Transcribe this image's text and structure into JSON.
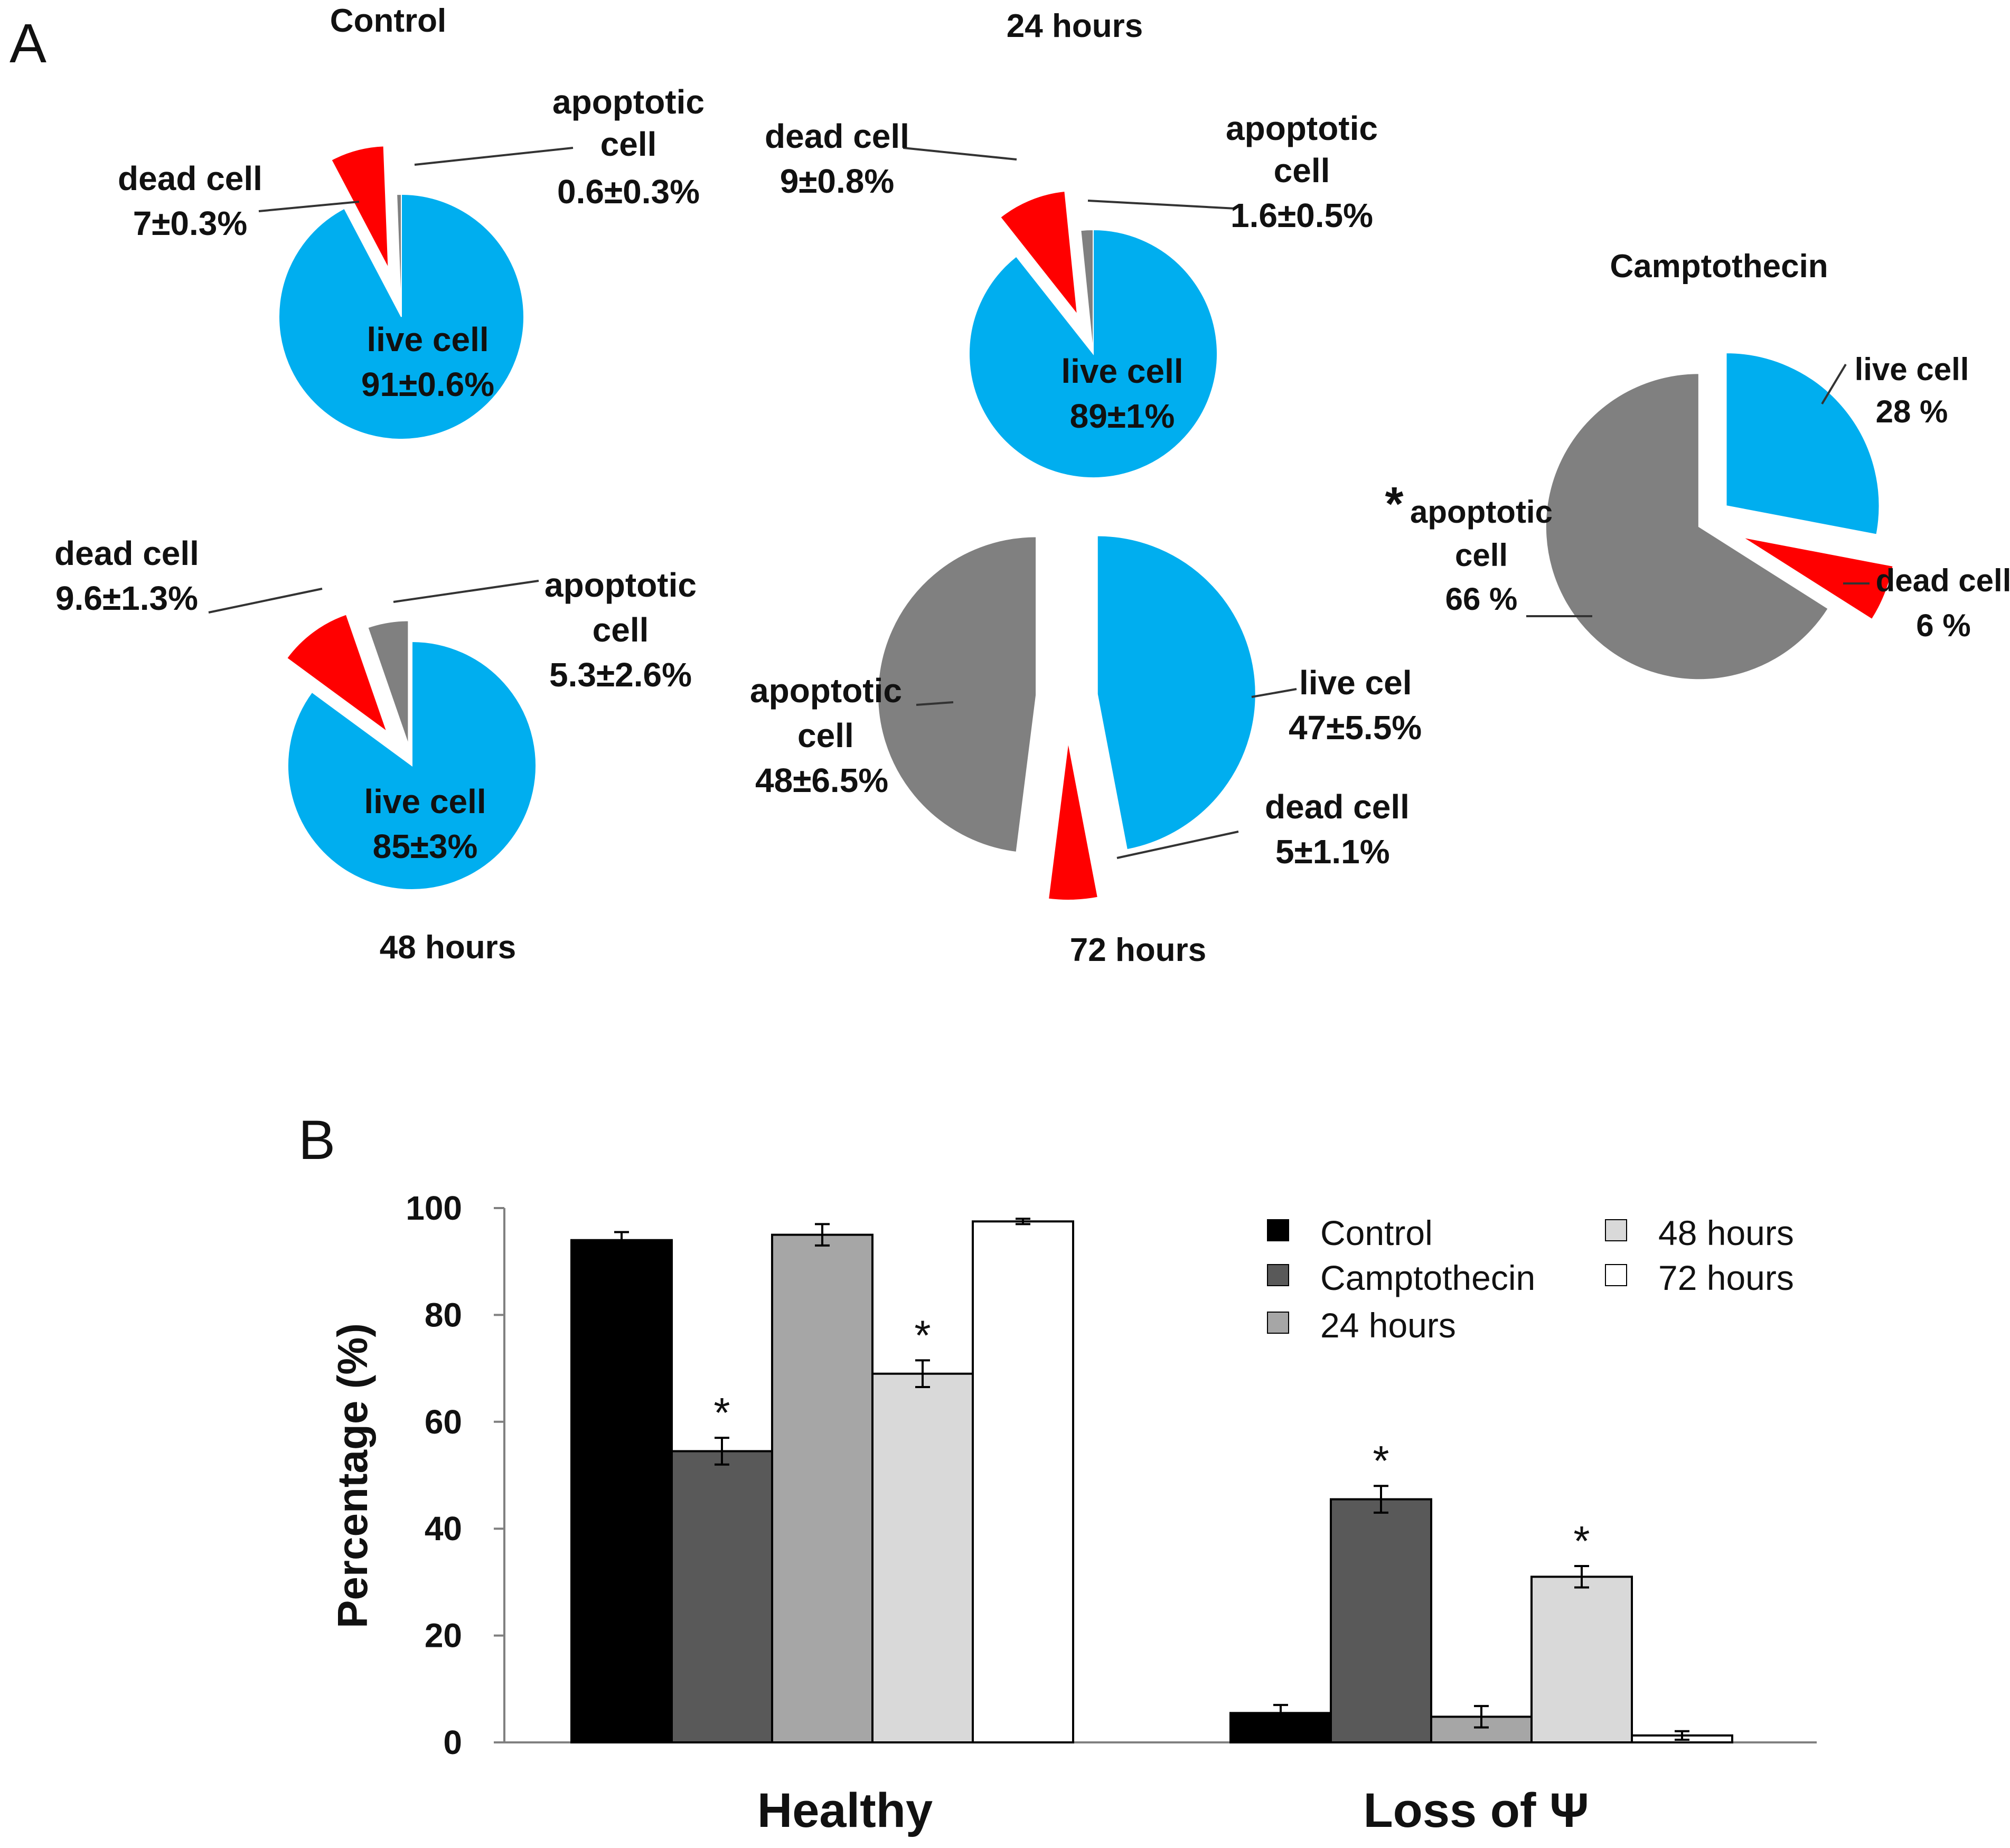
{
  "panel_labels": {
    "a": "A",
    "b": "B"
  },
  "chart_data": [
    {
      "type": "pie",
      "title": "Control",
      "slices": [
        {
          "label": "live cell",
          "value": 91,
          "value_text": "91±0.6%",
          "color": "#00AEEF"
        },
        {
          "label": "dead cell",
          "value": 7,
          "value_text": "7±0.3%",
          "color": "#FF0000"
        },
        {
          "label": "apoptotic cell",
          "value": 0.6,
          "value_text": "0.6±0.3%",
          "color": "#808080"
        }
      ]
    },
    {
      "type": "pie",
      "title": "24 hours",
      "slices": [
        {
          "label": "live cell",
          "value": 89,
          "value_text": "89±1%",
          "color": "#00AEEF"
        },
        {
          "label": "dead cell",
          "value": 9,
          "value_text": "9±0.8%",
          "color": "#FF0000"
        },
        {
          "label": "apoptotic cell",
          "value": 1.6,
          "value_text": "1.6±0.5%",
          "color": "#808080"
        }
      ]
    },
    {
      "type": "pie",
      "title": "48 hours",
      "slices": [
        {
          "label": "live cell",
          "value": 85,
          "value_text": "85±3%",
          "color": "#00AEEF"
        },
        {
          "label": "dead cell",
          "value": 9.6,
          "value_text": "9.6±1.3%",
          "color": "#FF0000"
        },
        {
          "label": "apoptotic cell",
          "value": 5.3,
          "value_text": "5.3±2.6%",
          "color": "#808080"
        }
      ]
    },
    {
      "type": "pie",
      "title": "72 hours",
      "slices": [
        {
          "label": "live cel",
          "value": 47,
          "value_text": "47±5.5%",
          "color": "#00AEEF"
        },
        {
          "label": "dead cell",
          "value": 5,
          "value_text": "5±1.1%",
          "color": "#FF0000"
        },
        {
          "label": "apoptotic cell",
          "value": 48,
          "value_text": "48±6.5%",
          "color": "#808080"
        }
      ]
    },
    {
      "type": "pie",
      "title": "Camptothecin",
      "marker": "*",
      "slices": [
        {
          "label": "live cell",
          "value": 28,
          "value_text": "28 %",
          "color": "#00AEEF"
        },
        {
          "label": "dead cell",
          "value": 6,
          "value_text": "6 %",
          "color": "#FF0000"
        },
        {
          "label": "apoptotic cell",
          "value": 66,
          "value_text": "66 %",
          "color": "#808080"
        }
      ]
    },
    {
      "type": "bar",
      "categories": [
        "Healthy",
        "Loss of Ψ"
      ],
      "ylabel": "Percentage (%)",
      "ylim": [
        0,
        100
      ],
      "yticks": [
        "0",
        "20",
        "40",
        "60",
        "80",
        "100"
      ],
      "grid": false,
      "legend_position": "top-right",
      "series": [
        {
          "name": "Control",
          "color": "#000000",
          "values": [
            94,
            5.5
          ],
          "errors": [
            1.5,
            1.5
          ],
          "significant": [
            false,
            false
          ]
        },
        {
          "name": "Camptothecin",
          "color": "#595959",
          "values": [
            54.5,
            45.5
          ],
          "errors": [
            2.5,
            2.5
          ],
          "significant": [
            true,
            true
          ]
        },
        {
          "name": "24 hours",
          "color": "#A6A6A6",
          "values": [
            95,
            4.8
          ],
          "errors": [
            2.0,
            2.0
          ],
          "significant": [
            false,
            false
          ]
        },
        {
          "name": "48 hours",
          "color": "#D9D9D9",
          "values": [
            69,
            31
          ],
          "errors": [
            2.5,
            2.0
          ],
          "significant": [
            true,
            true
          ]
        },
        {
          "name": "72 hours",
          "color": "#FFFFFF",
          "values": [
            97.5,
            1.3
          ],
          "errors": [
            0.5,
            0.8
          ],
          "significant": [
            false,
            false
          ]
        }
      ],
      "significance_marker": "*"
    }
  ]
}
